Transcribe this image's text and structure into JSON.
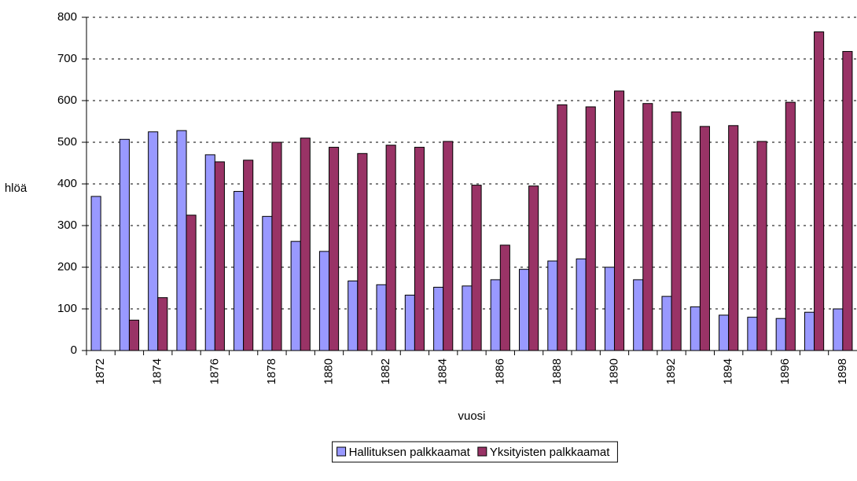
{
  "chart_data": {
    "type": "bar",
    "x_label": "vuosi",
    "y_label": "hlöä",
    "categories": [
      "1872",
      null,
      "1874",
      null,
      "1876",
      null,
      "1878",
      null,
      "1880",
      null,
      "1882",
      null,
      "1884",
      null,
      "1886",
      null,
      "1888",
      null,
      "1890",
      null,
      "1892",
      null,
      "1894",
      null,
      "1896",
      null,
      "1898"
    ],
    "series": [
      {
        "name": "Hallituksen palkkaamat",
        "color": "#9999ff",
        "values": [
          370,
          507,
          525,
          528,
          470,
          382,
          322,
          262,
          238,
          167,
          158,
          133,
          152,
          155,
          170,
          195,
          215,
          220,
          200,
          170,
          130,
          105,
          85,
          80,
          77,
          92,
          100
        ]
      },
      {
        "name": "Yksityisten palkkaamat",
        "color": "#993366",
        "values": [
          0,
          73,
          127,
          325,
          453,
          457,
          500,
          510,
          488,
          473,
          493,
          488,
          502,
          397,
          253,
          395,
          590,
          585,
          623,
          593,
          573,
          538,
          540,
          502,
          596,
          765,
          718
        ]
      }
    ],
    "ylim": [
      0,
      800
    ],
    "yticks": [
      0,
      100,
      200,
      300,
      400,
      500,
      600,
      700,
      800
    ],
    "grid": true,
    "legend": "bottom"
  }
}
